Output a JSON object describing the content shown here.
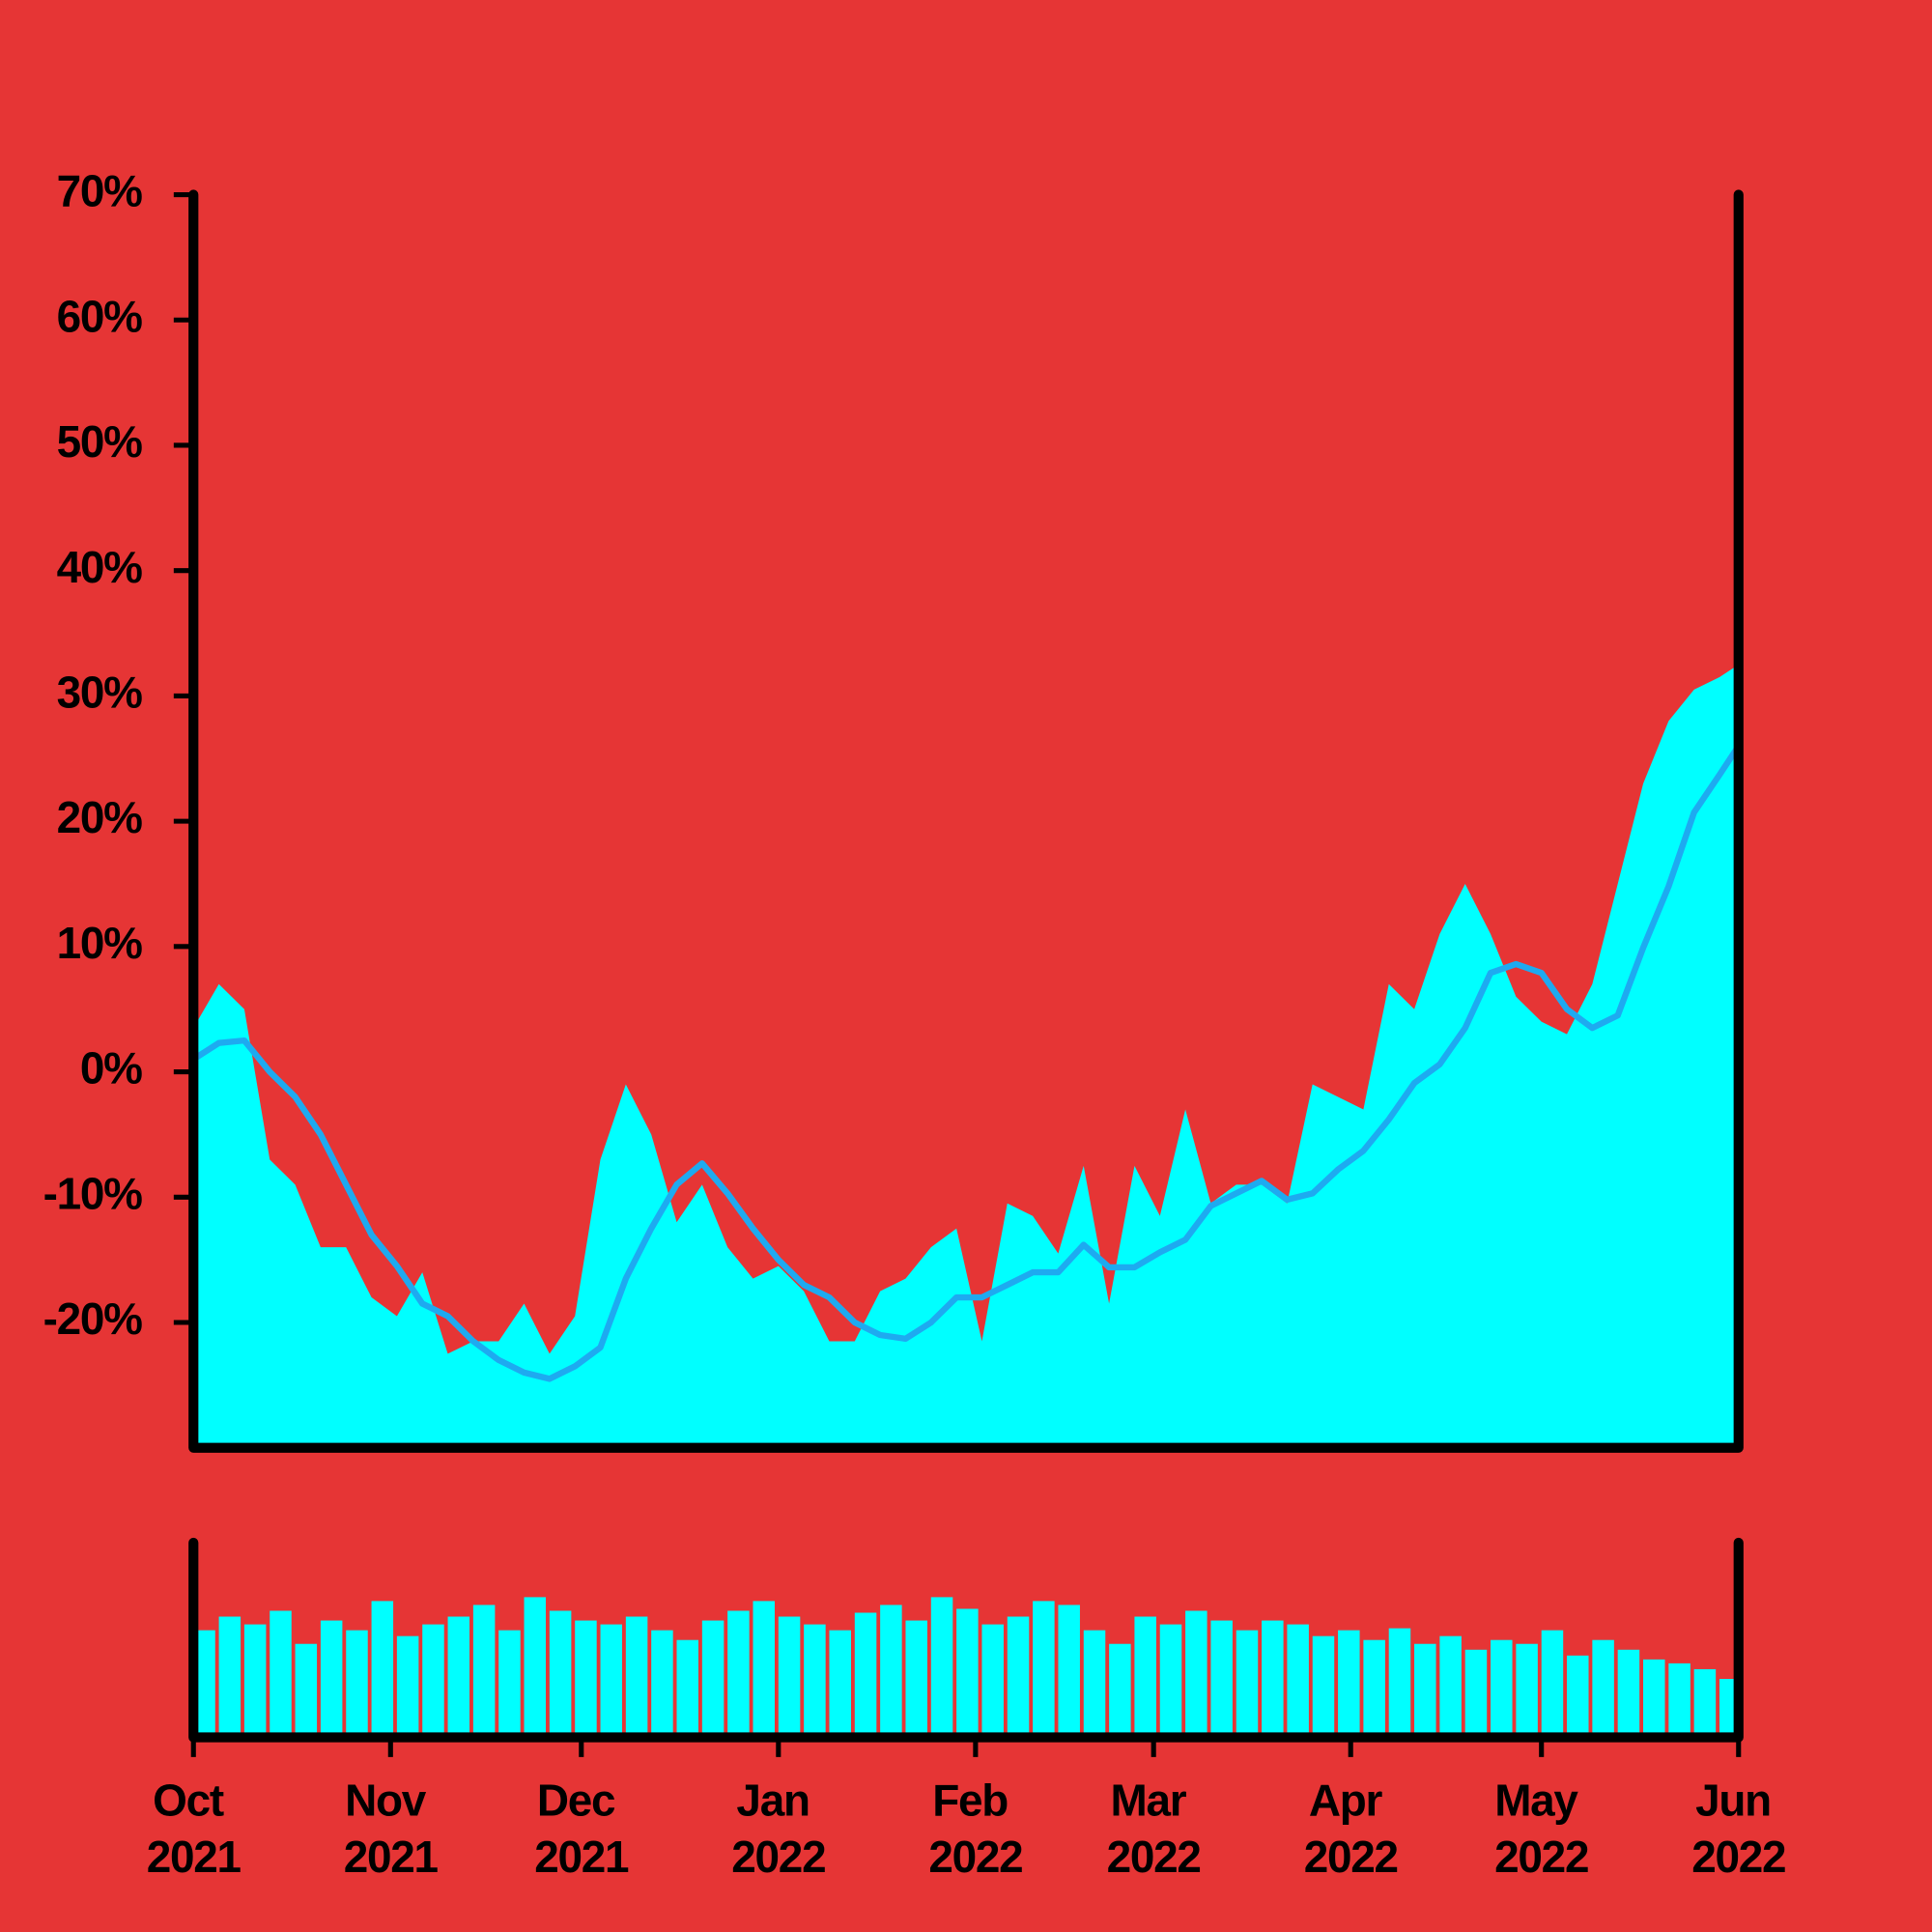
{
  "chart_data": [
    {
      "type": "area",
      "color": "#00ffff",
      "x": [
        0,
        4,
        8,
        12,
        16,
        20,
        24,
        28,
        32,
        36,
        40,
        44,
        48,
        52,
        56,
        60,
        64,
        68,
        72,
        76,
        80,
        84,
        88,
        92,
        96,
        100,
        104,
        108,
        112,
        116,
        120,
        124,
        128,
        132,
        136,
        140,
        144,
        148,
        152,
        156,
        160,
        164,
        168,
        172,
        176,
        180,
        184,
        188,
        192,
        196,
        200,
        204,
        208,
        212,
        216,
        220,
        224,
        228,
        232,
        236,
        240,
        243
      ],
      "values": [
        3.5,
        7,
        5,
        -7,
        -9,
        -14,
        -14,
        -18,
        -19.5,
        -16,
        -22.5,
        -21.5,
        -21.5,
        -18.5,
        -22.5,
        -19.5,
        -7,
        -1,
        -5,
        -12,
        -9,
        -14,
        -16.5,
        -15.5,
        -17.5,
        -21.5,
        -21.5,
        -17.5,
        -16.5,
        -14,
        -12.5,
        -21.5,
        -10.5,
        -11.5,
        -14.5,
        -7.5,
        -18.5,
        -7.5,
        -11.5,
        -3,
        -10.5,
        -9,
        -9,
        -10.5,
        -1,
        -2,
        -3,
        7,
        5,
        11,
        15,
        11,
        6,
        4,
        3,
        7,
        15,
        23,
        28,
        30.5,
        31.5,
        32.5
      ],
      "line": {
        "color": "#1eaaf0",
        "values": [
          1,
          2.3,
          2.5,
          0,
          -2,
          -5,
          -9,
          -13,
          -15.5,
          -18.5,
          -19.5,
          -21.5,
          -23,
          -24,
          -24.5,
          -23.5,
          -22,
          -16.5,
          -12.5,
          -9,
          -7.3,
          -9.7,
          -12.5,
          -15,
          -17,
          -18,
          -20,
          -21,
          -21.3,
          -20,
          -18,
          -18,
          -17,
          -16,
          -16,
          -13.8,
          -15.6,
          -15.6,
          -14.4,
          -13.4,
          -10.7,
          -9.7,
          -8.7,
          -10.2,
          -9.7,
          -7.8,
          -6.3,
          -3.8,
          -0.9,
          0.6,
          3.5,
          7.9,
          8.6,
          7.9,
          5,
          3.5,
          4.5,
          9.9,
          14.8,
          20.7,
          23.7,
          26
        ]
      },
      "xlim": [
        0,
        243
      ],
      "ylim": [
        -30,
        70
      ],
      "yticks": [
        {
          "value": -20,
          "label": "-20%"
        },
        {
          "value": -10,
          "label": "-10%"
        },
        {
          "value": 0,
          "label": "0%"
        },
        {
          "value": 10,
          "label": "10%"
        },
        {
          "value": 20,
          "label": "20%"
        },
        {
          "value": 30,
          "label": "30%"
        },
        {
          "value": 40,
          "label": "40%"
        },
        {
          "value": 50,
          "label": "50%"
        },
        {
          "value": 60,
          "label": "60%"
        },
        {
          "value": 70,
          "label": "70%"
        }
      ]
    },
    {
      "type": "bar",
      "color": "#00ffff",
      "x": [
        0,
        4,
        8,
        12,
        16,
        20,
        24,
        28,
        32,
        36,
        40,
        44,
        48,
        52,
        56,
        60,
        64,
        68,
        72,
        76,
        80,
        84,
        88,
        92,
        96,
        100,
        104,
        108,
        112,
        116,
        120,
        124,
        128,
        132,
        136,
        140,
        144,
        148,
        152,
        156,
        160,
        164,
        168,
        172,
        176,
        180,
        184,
        188,
        192,
        196,
        200,
        204,
        208,
        212,
        216,
        220,
        224,
        228,
        232,
        236,
        240
      ],
      "values": [
        55,
        62,
        58,
        65,
        48,
        60,
        55,
        70,
        52,
        58,
        62,
        68,
        55,
        72,
        65,
        60,
        58,
        62,
        55,
        50,
        60,
        65,
        70,
        62,
        58,
        55,
        64,
        68,
        60,
        72,
        66,
        58,
        62,
        70,
        68,
        55,
        48,
        62,
        58,
        65,
        60,
        55,
        60,
        58,
        52,
        55,
        50,
        56,
        48,
        52,
        45,
        50,
        48,
        55,
        42,
        50,
        45,
        40,
        38,
        35,
        30
      ],
      "xlim": [
        0,
        243
      ],
      "ylim": [
        0,
        100
      ],
      "xticks": [
        {
          "value": 0,
          "label": "Oct 2021"
        },
        {
          "value": 31,
          "label": "Nov 2021"
        },
        {
          "value": 61,
          "label": "Dec 2021"
        },
        {
          "value": 92,
          "label": "Jan 2022"
        },
        {
          "value": 123,
          "label": "Feb 2022"
        },
        {
          "value": 151,
          "label": "Mar 2022"
        },
        {
          "value": 182,
          "label": "Apr 2022"
        },
        {
          "value": 212,
          "label": "May 2022"
        },
        {
          "value": 243,
          "label": "Jun 2022"
        }
      ]
    }
  ]
}
